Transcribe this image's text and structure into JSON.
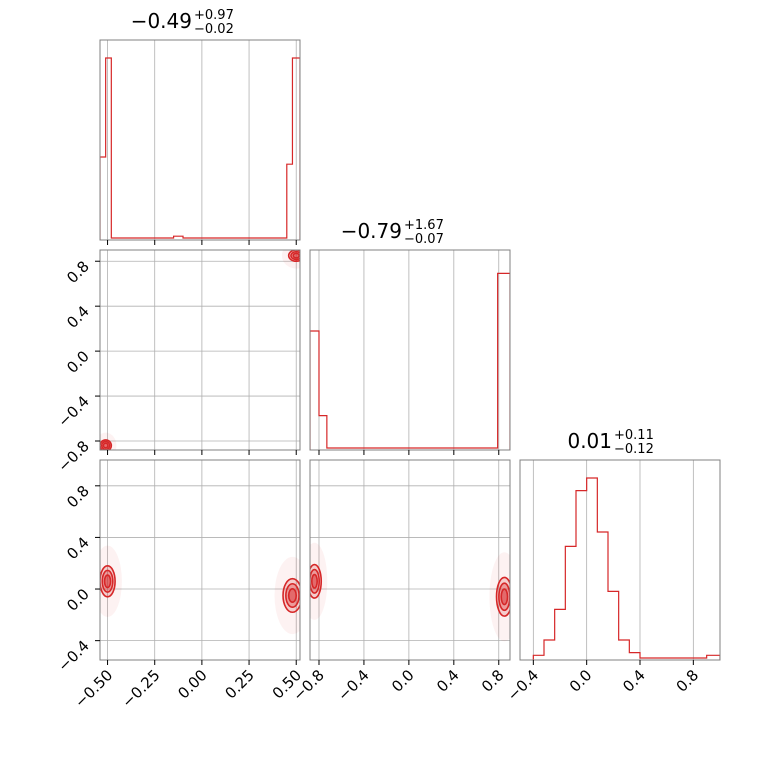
{
  "chart_data": {
    "type": "corner",
    "colors": {
      "hist": "#d62728",
      "grid": "#b0b0b0",
      "axis_frame": "#808080"
    },
    "grid": true,
    "titles": [
      {
        "median": "−0.49",
        "plus": "+0.97",
        "minus": "−0.02"
      },
      {
        "median": "−0.79",
        "plus": "+1.67",
        "minus": "−0.07"
      },
      {
        "median": "0.01",
        "plus": "+0.11",
        "minus": "−0.12"
      }
    ],
    "x_tick_labels": [
      [
        "−0.50",
        "−0.25",
        "0.00",
        "0.25",
        "0.50"
      ],
      [
        "−0.8",
        "−0.4",
        "0.0",
        "0.4",
        "0.8"
      ],
      [
        "−0.4",
        "0.0",
        "0.4",
        "0.8"
      ]
    ],
    "y_tick_labels": [
      [
        "0.8",
        "0.4",
        "0.0",
        "−0.4",
        "−0.8"
      ],
      [
        "0.8",
        "0.4",
        "0.0",
        "−0.4"
      ]
    ],
    "ranges": [
      [
        -0.54,
        0.52
      ],
      [
        -0.88,
        0.9
      ],
      [
        -0.5,
        1.0
      ]
    ],
    "ranges_2d": {
      "row2_y": [
        -0.55,
        1.0
      ]
    },
    "ticks": [
      [
        -0.5,
        -0.25,
        0.0,
        0.25,
        0.5
      ],
      [
        -0.8,
        -0.4,
        0.0,
        0.4,
        0.8
      ],
      [
        -0.4,
        0.0,
        0.4,
        0.8
      ]
    ],
    "row2_y_ticks": [
      0.8,
      0.4,
      0.0,
      -0.4
    ],
    "histograms": [
      {
        "edges": [
          -0.54,
          -0.51,
          -0.48,
          -0.15,
          -0.1,
          0.45,
          0.48,
          0.5,
          0.52
        ],
        "values": [
          0.45,
          1.0,
          0.0,
          0.01,
          0.0,
          0.41,
          1.0,
          1.0
        ]
      },
      {
        "edges": [
          -0.88,
          -0.8,
          -0.73,
          -0.66,
          0.79,
          0.82,
          0.9
        ],
        "values": [
          0.65,
          0.18,
          0.0,
          0.0,
          0.97,
          0.97
        ]
      },
      {
        "edges": [
          -0.4,
          -0.32,
          -0.24,
          -0.16,
          -0.08,
          0.0,
          0.08,
          0.16,
          0.24,
          0.32,
          0.4,
          0.9,
          1.0
        ],
        "values": [
          0.015,
          0.1,
          0.27,
          0.62,
          0.93,
          1.0,
          0.7,
          0.37,
          0.1,
          0.03,
          0.0,
          0.015
        ]
      }
    ],
    "densities": [
      {
        "panel": "x1-vs-x0",
        "blobs": [
          {
            "cx": 0.5,
            "cy": 0.85,
            "rx": 0.04,
            "ry": 0.05
          },
          {
            "cx": -0.51,
            "cy": -0.84,
            "rx": 0.03,
            "ry": 0.05
          }
        ]
      },
      {
        "panel": "x2-vs-x0",
        "blobs": [
          {
            "cx": -0.5,
            "cy": 0.06,
            "rx": 0.04,
            "ry": 0.12
          },
          {
            "cx": 0.48,
            "cy": -0.05,
            "rx": 0.05,
            "ry": 0.13
          }
        ]
      },
      {
        "panel": "x2-vs-x1",
        "blobs": [
          {
            "cx": -0.84,
            "cy": 0.06,
            "rx": 0.06,
            "ry": 0.13
          },
          {
            "cx": 0.85,
            "cy": -0.06,
            "rx": 0.07,
            "ry": 0.15
          }
        ]
      }
    ]
  }
}
